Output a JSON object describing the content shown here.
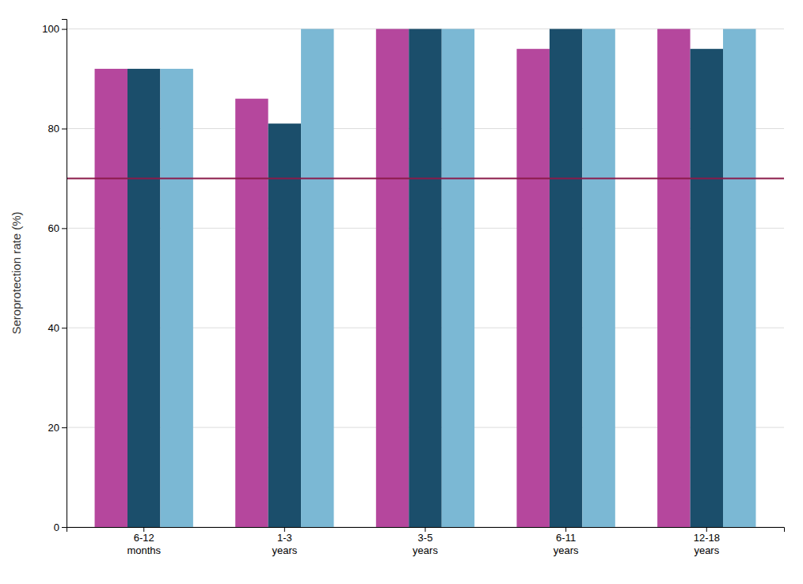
{
  "chart_data": {
    "type": "bar",
    "categories": [
      "6-12\nmonths",
      "1-3\nyears",
      "3-5\nyears",
      "6-11\nyears",
      "12-18\nyears"
    ],
    "series": [
      {
        "color": "#B5479D",
        "values": [
          92,
          86,
          100,
          96,
          100
        ]
      },
      {
        "color": "#1B4E6B",
        "values": [
          92,
          81,
          100,
          100,
          96
        ]
      },
      {
        "color": "#7BB8D4",
        "values": [
          92,
          100,
          100,
          100,
          100
        ]
      }
    ],
    "threshold": {
      "value": 70,
      "color": "#8B1A4A"
    },
    "ylabel": "Seroprotection rate (%)",
    "ylim": [
      0,
      102
    ],
    "yticks": [
      0,
      20,
      40,
      60,
      80,
      100
    ],
    "grid": true
  }
}
